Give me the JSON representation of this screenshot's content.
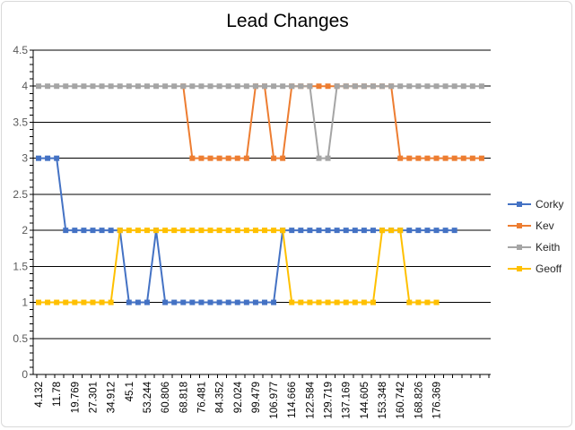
{
  "chart_data": {
    "type": "line",
    "title": "Lead Changes",
    "xlabel": "",
    "ylabel": "",
    "ylim": [
      0,
      4.5
    ],
    "yticks": [
      "0",
      "0.5",
      "1",
      "1.5",
      "2",
      "2.5",
      "3",
      "3.5",
      "4",
      "4.5"
    ],
    "x_tick_labels": [
      "4.132",
      "11.78",
      "19.769",
      "27.301",
      "34.912",
      "45.1",
      "53.244",
      "60.806",
      "68.818",
      "76.481",
      "84.352",
      "92.024",
      "99.479",
      "106.977",
      "114.666",
      "122.584",
      "129.719",
      "137.169",
      "144.605",
      "153.348",
      "160.742",
      "168.826",
      "176.369"
    ],
    "grid": "horizontal",
    "legend_position": "right",
    "series": [
      {
        "name": "Corky",
        "color": "#4472C4",
        "values": [
          3,
          3,
          3,
          2,
          2,
          2,
          2,
          2,
          2,
          2,
          1,
          1,
          1,
          2,
          1,
          1,
          1,
          1,
          1,
          1,
          1,
          1,
          1,
          1,
          1,
          1,
          1,
          2,
          2,
          2,
          2,
          2,
          2,
          2,
          2,
          2,
          2,
          2,
          2,
          2,
          2,
          2,
          2,
          2,
          2,
          2,
          2
        ]
      },
      {
        "name": "Kev",
        "color": "#ED7D31",
        "values": [
          null,
          null,
          null,
          null,
          null,
          null,
          null,
          null,
          null,
          null,
          null,
          null,
          null,
          null,
          null,
          null,
          4,
          3,
          3,
          3,
          3,
          3,
          3,
          3,
          4,
          4,
          3,
          3,
          4,
          4,
          4,
          4,
          4,
          4,
          4,
          4,
          4,
          4,
          4,
          4,
          3,
          3,
          3,
          3,
          3,
          3,
          3,
          3,
          3,
          3
        ]
      },
      {
        "name": "Keith",
        "color": "#A5A5A5",
        "values": [
          4,
          4,
          4,
          4,
          4,
          4,
          4,
          4,
          4,
          4,
          4,
          4,
          4,
          4,
          4,
          4,
          4,
          4,
          4,
          4,
          4,
          4,
          4,
          4,
          4,
          4,
          4,
          4,
          4,
          4,
          4,
          3,
          3,
          4,
          4,
          4,
          4,
          4,
          4,
          4,
          4,
          4,
          4,
          4,
          4,
          4,
          4,
          4,
          4,
          4
        ]
      },
      {
        "name": "Geoff",
        "color": "#FFC000",
        "values": [
          1,
          1,
          1,
          1,
          1,
          1,
          1,
          1,
          1,
          2,
          2,
          2,
          2,
          2,
          2,
          2,
          2,
          2,
          2,
          2,
          2,
          2,
          2,
          2,
          2,
          2,
          2,
          2,
          1,
          1,
          1,
          1,
          1,
          1,
          1,
          1,
          1,
          1,
          2,
          2,
          2,
          1,
          1,
          1,
          1
        ]
      }
    ]
  }
}
